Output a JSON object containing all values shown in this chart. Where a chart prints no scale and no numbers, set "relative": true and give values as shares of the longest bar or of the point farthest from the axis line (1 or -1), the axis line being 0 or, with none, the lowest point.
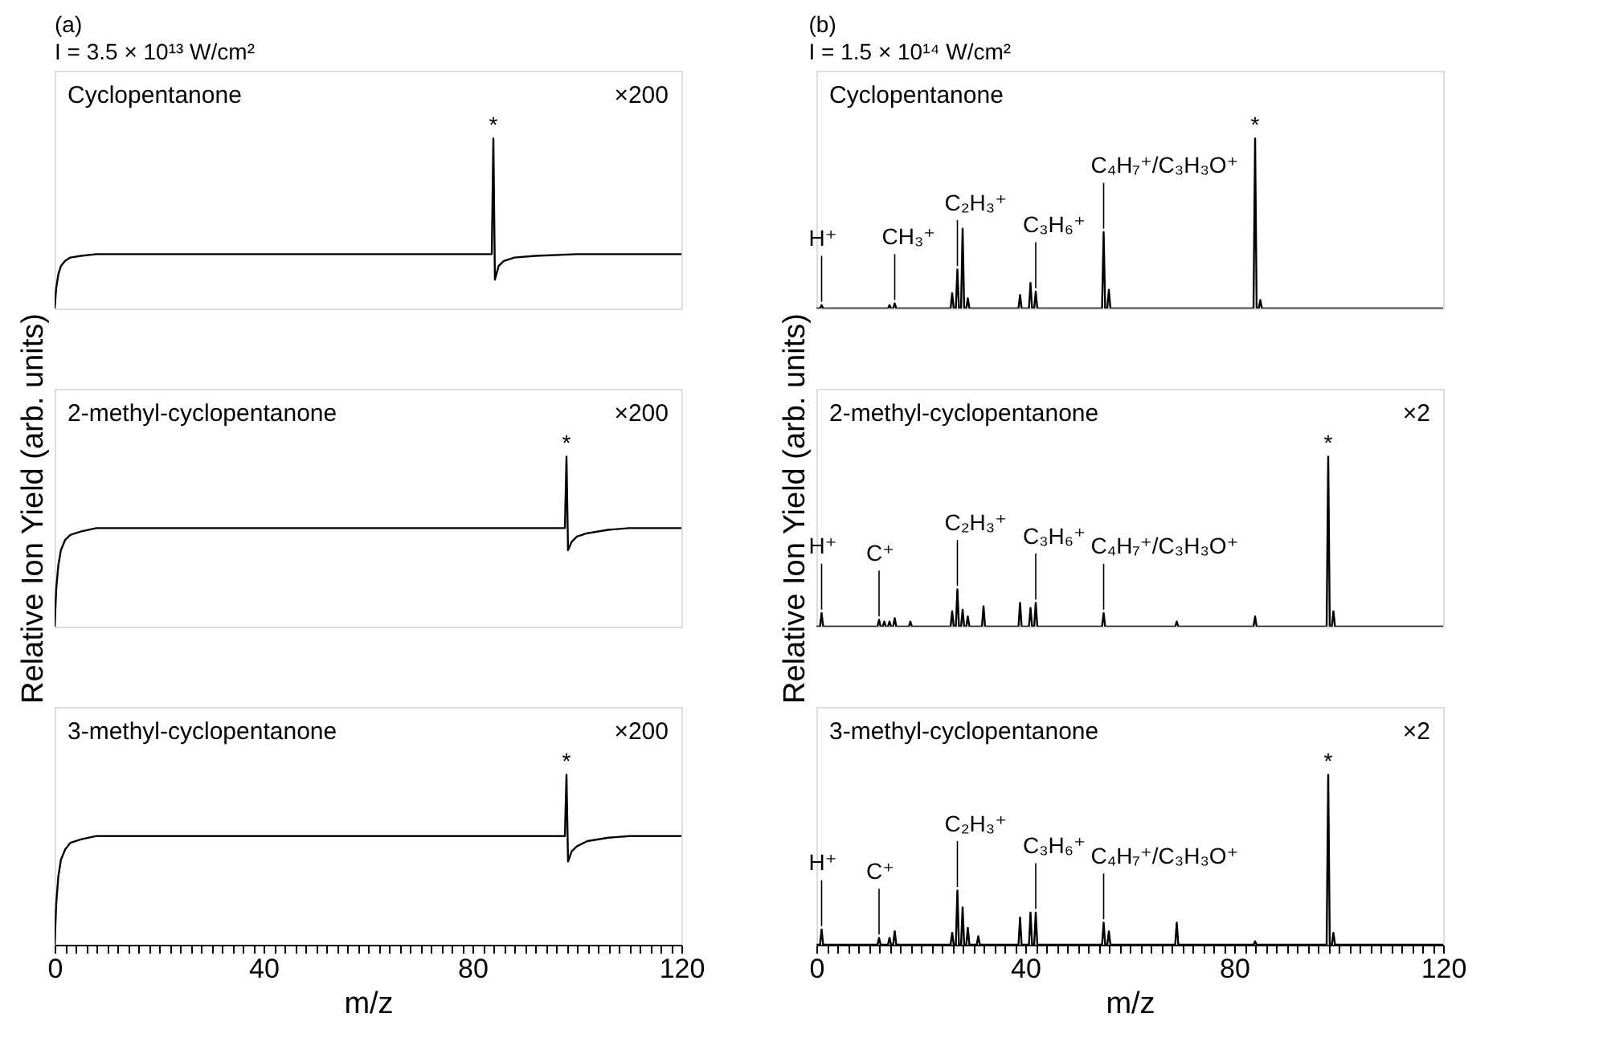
{
  "chart_data": [
    {
      "type": "line",
      "relative": true,
      "title": "(a)",
      "subtitle": "I = 3.5 × 10¹³ W/cm²",
      "xlim": [
        0,
        120
      ],
      "tick_labels": false,
      "series": [
        {
          "color": "#000000",
          "x": [
            0,
            0.3,
            0.7,
            1.2,
            2,
            3,
            5,
            8,
            20,
            40,
            60,
            83.7,
            84,
            84.3,
            85,
            86,
            88,
            92,
            100,
            120
          ],
          "values": [
            0,
            0.12,
            0.2,
            0.25,
            0.28,
            0.3,
            0.31,
            0.32,
            0.32,
            0.32,
            0.32,
            0.32,
            1,
            0.17,
            0.25,
            0.28,
            0.3,
            0.31,
            0.32,
            0.32
          ]
        }
      ],
      "annotations": [
        "Cyclopentanone",
        "×200",
        {
          "text": "*",
          "x": 84,
          "y": 1
        }
      ]
    },
    {
      "type": "line",
      "relative": true,
      "title": "(b)",
      "subtitle": "I = 1.5 × 10¹⁴ W/cm²",
      "xlim": [
        0,
        120
      ],
      "tick_labels": false,
      "series": [
        {
          "color": "#000000",
          "x": [
            0,
            0.7,
            1,
            1.3,
            13.7,
            14,
            14.3,
            14.7,
            15,
            15.3,
            25.7,
            26,
            26.3,
            26.7,
            27,
            27.3,
            27.7,
            28,
            28.3,
            28.7,
            29,
            29.3,
            38.7,
            39,
            39.3,
            40.7,
            41,
            41.3,
            41.7,
            42,
            42.3,
            54.7,
            55,
            55.3,
            55.7,
            56,
            56.3,
            83.7,
            84,
            84.3,
            84.7,
            85,
            85.3,
            120
          ],
          "values": [
            0,
            0,
            0.02,
            0,
            0,
            0.02,
            0,
            0,
            0.03,
            0,
            0,
            0.09,
            0,
            0,
            0.23,
            0,
            0,
            0.47,
            0,
            0,
            0.06,
            0,
            0,
            0.08,
            0,
            0,
            0.15,
            0,
            0,
            0.1,
            0,
            0,
            0.45,
            0,
            0,
            0.11,
            0,
            0,
            1,
            0,
            0,
            0.05,
            0,
            0
          ]
        }
      ],
      "annotations": [
        "Cyclopentanone",
        {
          "text": "H⁺",
          "x": 1,
          "y": 0.02
        },
        {
          "text": "CH₃⁺",
          "x": 15,
          "y": 0.03
        },
        {
          "text": "C₂H₃⁺",
          "x": 27,
          "y": 0.23
        },
        {
          "text": "C₃H₆⁺",
          "x": 42,
          "y": 0.1
        },
        {
          "text": "C₄H₇⁺/C₃H₃O⁺",
          "x": 55,
          "y": 0.45
        },
        {
          "text": "*",
          "x": 84,
          "y": 1
        }
      ]
    },
    {
      "type": "line",
      "relative": true,
      "ylabel": "Relative Ion Yield (arb. units)",
      "xlim": [
        0,
        120
      ],
      "tick_labels": false,
      "series": [
        {
          "color": "#000000",
          "x": [
            0,
            0.3,
            0.7,
            1.2,
            2,
            3,
            5,
            8,
            20,
            40,
            60,
            80,
            97.7,
            98,
            98.3,
            99,
            100,
            102,
            106,
            110,
            120
          ],
          "values": [
            0,
            0.22,
            0.36,
            0.45,
            0.51,
            0.54,
            0.56,
            0.58,
            0.58,
            0.58,
            0.58,
            0.58,
            0.58,
            1,
            0.45,
            0.5,
            0.53,
            0.55,
            0.57,
            0.58,
            0.58
          ]
        }
      ],
      "annotations": [
        "2-methyl-cyclopentanone",
        "×200",
        {
          "text": "*",
          "x": 98,
          "y": 1
        }
      ]
    },
    {
      "type": "line",
      "relative": true,
      "ylabel": "Relative Ion Yield (arb. units)",
      "xlim": [
        0,
        120
      ],
      "tick_labels": false,
      "series": [
        {
          "color": "#000000",
          "x": [
            0,
            0.7,
            1,
            1.3,
            11.7,
            12,
            12.3,
            12.7,
            13,
            13.3,
            13.7,
            14,
            14.3,
            14.7,
            15,
            15.3,
            17.7,
            18,
            18.3,
            25.7,
            26,
            26.3,
            26.7,
            27,
            27.3,
            27.7,
            28,
            28.3,
            28.7,
            29,
            29.3,
            31.7,
            32,
            32.3,
            38.7,
            39,
            39.3,
            40.7,
            41,
            41.3,
            41.7,
            42,
            42.3,
            54.7,
            55,
            55.3,
            68.7,
            69,
            69.3,
            83.7,
            84,
            84.3,
            97.7,
            98,
            98.3,
            98.7,
            99,
            99.3,
            120
          ],
          "values": [
            0,
            0,
            0.08,
            0,
            0,
            0.04,
            0,
            0,
            0.03,
            0,
            0,
            0.03,
            0,
            0,
            0.05,
            0,
            0,
            0.03,
            0,
            0,
            0.09,
            0,
            0,
            0.22,
            0,
            0,
            0.1,
            0,
            0,
            0.06,
            0,
            0,
            0.12,
            0,
            0,
            0.14,
            0,
            0,
            0.11,
            0,
            0,
            0.14,
            0,
            0,
            0.08,
            0,
            0,
            0.03,
            0,
            0,
            0.06,
            0,
            0,
            1,
            0,
            0,
            0.09,
            0,
            0
          ]
        }
      ],
      "annotations": [
        "2-methyl-cyclopentanone",
        "×2",
        {
          "text": "H⁺",
          "x": 1,
          "y": 0.08
        },
        {
          "text": "C⁺",
          "x": 12,
          "y": 0.04
        },
        {
          "text": "C₂H₃⁺",
          "x": 27,
          "y": 0.22
        },
        {
          "text": "C₃H₆⁺",
          "x": 42,
          "y": 0.14
        },
        {
          "text": "C₄H₇⁺/C₃H₃O⁺",
          "x": 55,
          "y": 0.08
        },
        {
          "text": "*",
          "x": 98,
          "y": 1
        }
      ]
    },
    {
      "type": "line",
      "relative": true,
      "xlabel": "m/z",
      "xlim": [
        0,
        120
      ],
      "tick_labels": "x",
      "xticks": [
        0,
        {
          "value": 2,
          "label": null
        },
        {
          "value": 4,
          "label": null
        },
        {
          "value": 6,
          "label": null
        },
        {
          "value": 8,
          "label": null
        },
        {
          "value": 10,
          "label": null
        },
        {
          "value": 12,
          "label": null
        },
        {
          "value": 14,
          "label": null
        },
        {
          "value": 16,
          "label": null
        },
        {
          "value": 18,
          "label": null
        },
        {
          "value": 20,
          "label": null
        },
        {
          "value": 22,
          "label": null
        },
        {
          "value": 24,
          "label": null
        },
        {
          "value": 26,
          "label": null
        },
        {
          "value": 28,
          "label": null
        },
        {
          "value": 30,
          "label": null
        },
        {
          "value": 32,
          "label": null
        },
        {
          "value": 34,
          "label": null
        },
        {
          "value": 36,
          "label": null
        },
        {
          "value": 38,
          "label": null
        },
        40,
        {
          "value": 42,
          "label": null
        },
        {
          "value": 44,
          "label": null
        },
        {
          "value": 46,
          "label": null
        },
        {
          "value": 48,
          "label": null
        },
        {
          "value": 50,
          "label": null
        },
        {
          "value": 52,
          "label": null
        },
        {
          "value": 54,
          "label": null
        },
        {
          "value": 56,
          "label": null
        },
        {
          "value": 58,
          "label": null
        },
        {
          "value": 60,
          "label": null
        },
        {
          "value": 62,
          "label": null
        },
        {
          "value": 64,
          "label": null
        },
        {
          "value": 66,
          "label": null
        },
        {
          "value": 68,
          "label": null
        },
        {
          "value": 70,
          "label": null
        },
        {
          "value": 72,
          "label": null
        },
        {
          "value": 74,
          "label": null
        },
        {
          "value": 76,
          "label": null
        },
        {
          "value": 78,
          "label": null
        },
        80,
        {
          "value": 82,
          "label": null
        },
        {
          "value": 84,
          "label": null
        },
        {
          "value": 86,
          "label": null
        },
        {
          "value": 88,
          "label": null
        },
        {
          "value": 90,
          "label": null
        },
        {
          "value": 92,
          "label": null
        },
        {
          "value": 94,
          "label": null
        },
        {
          "value": 96,
          "label": null
        },
        {
          "value": 98,
          "label": null
        },
        {
          "value": 100,
          "label": null
        },
        {
          "value": 102,
          "label": null
        },
        {
          "value": 104,
          "label": null
        },
        {
          "value": 106,
          "label": null
        },
        {
          "value": 108,
          "label": null
        },
        {
          "value": 110,
          "label": null
        },
        {
          "value": 112,
          "label": null
        },
        {
          "value": 114,
          "label": null
        },
        {
          "value": 116,
          "label": null
        },
        {
          "value": 118,
          "label": null
        },
        120
      ],
      "series": [
        {
          "color": "#000000",
          "x": [
            0,
            0.3,
            0.7,
            1.2,
            2,
            3,
            5,
            8,
            20,
            40,
            60,
            80,
            97.7,
            98,
            98.3,
            99,
            100,
            102,
            106,
            110,
            120
          ],
          "values": [
            0,
            0.24,
            0.4,
            0.5,
            0.56,
            0.6,
            0.62,
            0.64,
            0.64,
            0.64,
            0.64,
            0.64,
            0.64,
            1,
            0.49,
            0.55,
            0.58,
            0.61,
            0.63,
            0.64,
            0.64
          ]
        }
      ],
      "annotations": [
        "3-methyl-cyclopentanone",
        "×200",
        {
          "text": "*",
          "x": 98,
          "y": 1
        }
      ]
    },
    {
      "type": "line",
      "relative": true,
      "xlabel": "m/z",
      "xlim": [
        0,
        120
      ],
      "tick_labels": "x",
      "xticks": [
        0,
        {
          "value": 2,
          "label": null
        },
        {
          "value": 4,
          "label": null
        },
        {
          "value": 6,
          "label": null
        },
        {
          "value": 8,
          "label": null
        },
        {
          "value": 10,
          "label": null
        },
        {
          "value": 12,
          "label": null
        },
        {
          "value": 14,
          "label": null
        },
        {
          "value": 16,
          "label": null
        },
        {
          "value": 18,
          "label": null
        },
        {
          "value": 20,
          "label": null
        },
        {
          "value": 22,
          "label": null
        },
        {
          "value": 24,
          "label": null
        },
        {
          "value": 26,
          "label": null
        },
        {
          "value": 28,
          "label": null
        },
        {
          "value": 30,
          "label": null
        },
        {
          "value": 32,
          "label": null
        },
        {
          "value": 34,
          "label": null
        },
        {
          "value": 36,
          "label": null
        },
        {
          "value": 38,
          "label": null
        },
        40,
        {
          "value": 42,
          "label": null
        },
        {
          "value": 44,
          "label": null
        },
        {
          "value": 46,
          "label": null
        },
        {
          "value": 48,
          "label": null
        },
        {
          "value": 50,
          "label": null
        },
        {
          "value": 52,
          "label": null
        },
        {
          "value": 54,
          "label": null
        },
        {
          "value": 56,
          "label": null
        },
        {
          "value": 58,
          "label": null
        },
        {
          "value": 60,
          "label": null
        },
        {
          "value": 62,
          "label": null
        },
        {
          "value": 64,
          "label": null
        },
        {
          "value": 66,
          "label": null
        },
        {
          "value": 68,
          "label": null
        },
        {
          "value": 70,
          "label": null
        },
        {
          "value": 72,
          "label": null
        },
        {
          "value": 74,
          "label": null
        },
        {
          "value": 76,
          "label": null
        },
        {
          "value": 78,
          "label": null
        },
        80,
        {
          "value": 82,
          "label": null
        },
        {
          "value": 84,
          "label": null
        },
        {
          "value": 86,
          "label": null
        },
        {
          "value": 88,
          "label": null
        },
        {
          "value": 90,
          "label": null
        },
        {
          "value": 92,
          "label": null
        },
        {
          "value": 94,
          "label": null
        },
        {
          "value": 96,
          "label": null
        },
        {
          "value": 98,
          "label": null
        },
        {
          "value": 100,
          "label": null
        },
        {
          "value": 102,
          "label": null
        },
        {
          "value": 104,
          "label": null
        },
        {
          "value": 106,
          "label": null
        },
        {
          "value": 108,
          "label": null
        },
        {
          "value": 110,
          "label": null
        },
        {
          "value": 112,
          "label": null
        },
        {
          "value": 114,
          "label": null
        },
        {
          "value": 116,
          "label": null
        },
        {
          "value": 118,
          "label": null
        },
        120
      ],
      "series": [
        {
          "color": "#000000",
          "x": [
            0,
            0.7,
            1,
            1.3,
            11.7,
            12,
            12.3,
            13.7,
            14,
            14.3,
            14.7,
            15,
            15.3,
            25.7,
            26,
            26.3,
            26.7,
            27,
            27.3,
            27.7,
            28,
            28.3,
            28.7,
            29,
            29.3,
            30.7,
            31,
            31.3,
            38.7,
            39,
            39.3,
            40.7,
            41,
            41.3,
            41.7,
            42,
            42.3,
            54.7,
            55,
            55.3,
            55.7,
            56,
            56.3,
            68.7,
            69,
            69.3,
            83.7,
            84,
            84.3,
            97.7,
            98,
            98.3,
            98.7,
            99,
            99.3,
            120
          ],
          "values": [
            0,
            0,
            0.09,
            0,
            0,
            0.04,
            0,
            0,
            0.04,
            0,
            0,
            0.08,
            0,
            0,
            0.07,
            0,
            0,
            0.32,
            0,
            0,
            0.22,
            0,
            0,
            0.1,
            0,
            0,
            0.05,
            0,
            0,
            0.16,
            0,
            0,
            0.19,
            0,
            0,
            0.19,
            0,
            0,
            0.13,
            0,
            0,
            0.08,
            0,
            0,
            0.13,
            0,
            0,
            0.02,
            0,
            0,
            1,
            0,
            0,
            0.07,
            0,
            0
          ]
        }
      ],
      "annotations": [
        "3-methyl-cyclopentanone",
        "×2",
        {
          "text": "H⁺",
          "x": 1,
          "y": 0.09
        },
        {
          "text": "C⁺",
          "x": 12,
          "y": 0.04
        },
        {
          "text": "C₂H₃⁺",
          "x": 27,
          "y": 0.32
        },
        {
          "text": "C₃H₆⁺",
          "x": 42,
          "y": 0.19
        },
        {
          "text": "C₄H₇⁺/C₃H₃O⁺",
          "x": 55,
          "y": 0.13
        },
        {
          "text": "*",
          "x": 98,
          "y": 1
        }
      ]
    }
  ]
}
